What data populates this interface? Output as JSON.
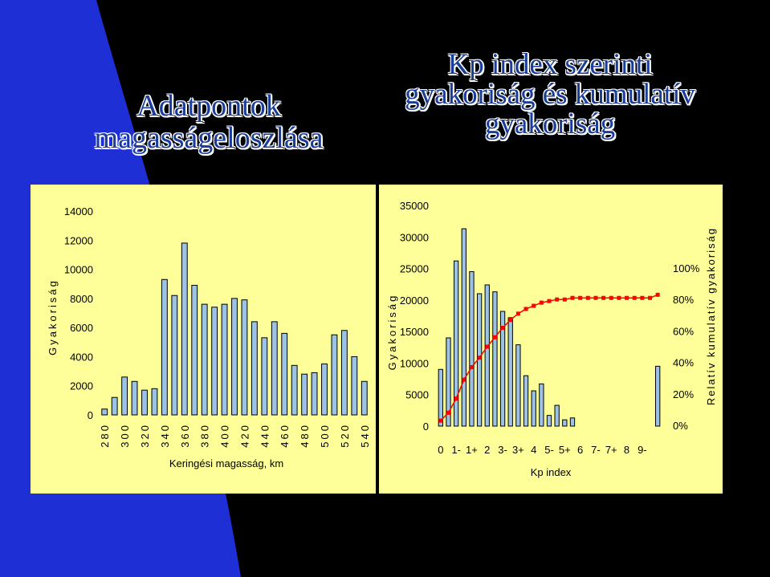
{
  "slide": {
    "title_left": "Adatpontok magasságeloszlása",
    "title_right": "Kp index szerinti gyakoriság és kumulatív gyakoriság",
    "colors": {
      "background": "#000000",
      "accent_shape": "#1e2fd6",
      "chart_panel": "#ffff99",
      "bars": "#9cc3e6",
      "cumulative_line": "#ff0000"
    }
  },
  "chart_data": [
    {
      "type": "bar",
      "xlabel": "Keringési magasság, km",
      "ylabel": "Gyakoriság",
      "ylim": [
        0,
        14000
      ],
      "yticks": [
        "0",
        "2000",
        "4000",
        "6000",
        "8000",
        "10000",
        "12000",
        "14000"
      ],
      "xticks": [
        "280",
        "300",
        "320",
        "340",
        "360",
        "380",
        "400",
        "420",
        "440",
        "460",
        "480",
        "500",
        "520",
        "540"
      ],
      "grid": false,
      "values": [
        400,
        1200,
        2600,
        2300,
        1700,
        1800,
        9300,
        8200,
        11800,
        8900,
        7600,
        7400,
        7600,
        8000,
        7900,
        6400,
        5300,
        6400,
        5600,
        3400,
        2800,
        2900,
        3500,
        5500,
        5800,
        4000,
        2300
      ]
    },
    {
      "type": "bar",
      "xlabel": "Kp index",
      "ylabel": "Gyakoriság",
      "ylabel_right": "Relatív kumulatív gyakoriság",
      "ylim": [
        0,
        35000
      ],
      "ylim_right": [
        0,
        1
      ],
      "yticks": [
        "0",
        "5000",
        "10000",
        "15000",
        "20000",
        "25000",
        "30000",
        "35000"
      ],
      "yticks_right": [
        "0%",
        "20%",
        "40%",
        "60%",
        "80%",
        "100%"
      ],
      "xticks": [
        "0",
        "1-",
        "1+",
        "2",
        "3-",
        "3+",
        "4",
        "5-",
        "5+",
        "6",
        "7-",
        "7+",
        "8",
        "9-"
      ],
      "grid": false,
      "series": [
        {
          "type": "bar",
          "values": [
            9000,
            14000,
            26200,
            31300,
            24500,
            21000,
            22400,
            21300,
            18200,
            17200,
            12900,
            8000,
            5600,
            6700,
            1700,
            3300,
            1000,
            1300,
            0,
            0,
            0,
            0,
            0,
            0,
            0,
            0,
            0,
            0,
            9500
          ]
        },
        {
          "type": "line",
          "values": [
            0.03,
            0.08,
            0.17,
            0.29,
            0.37,
            0.43,
            0.5,
            0.56,
            0.62,
            0.67,
            0.71,
            0.74,
            0.76,
            0.78,
            0.79,
            0.8,
            0.8,
            0.81,
            0.81,
            0.81,
            0.81,
            0.81,
            0.81,
            0.81,
            0.81,
            0.81,
            0.81,
            0.81,
            0.83
          ]
        }
      ]
    }
  ]
}
